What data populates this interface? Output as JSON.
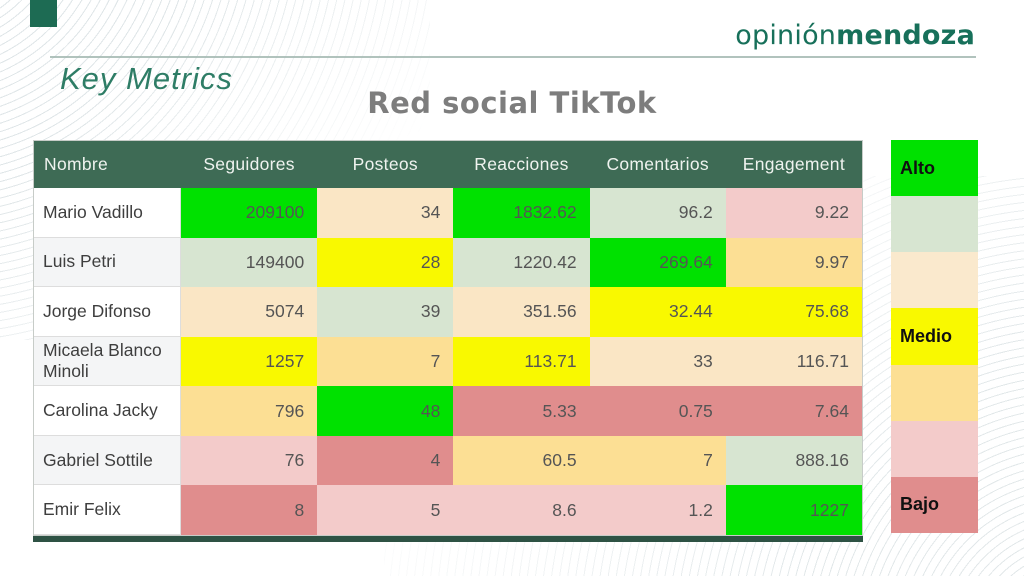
{
  "brand": {
    "logo_regular": "opinión",
    "logo_bold": "mendoza"
  },
  "page": {
    "section_title": "Key Metrics",
    "table_title": "Red social TikTok"
  },
  "colors": {
    "brand_green": "#1d6b53",
    "logo_green": "#17705a",
    "accent_green": "#2e7d66",
    "header_green": "#3e6b55",
    "title_gray": "#7d7d7d"
  },
  "legend": {
    "items": [
      {
        "label": "Alto",
        "color": "#00e100"
      },
      {
        "label": "",
        "color": "#d7e5d1"
      },
      {
        "label": "",
        "color": "#fae9cd"
      },
      {
        "label": "Medio",
        "color": "#f9f900"
      },
      {
        "label": "",
        "color": "#fcdf94"
      },
      {
        "label": "",
        "color": "#f3cbca"
      },
      {
        "label": "Bajo",
        "color": "#e08d8d"
      }
    ]
  },
  "chart_data": {
    "type": "table",
    "title": "Red social TikTok",
    "columns": [
      "Nombre",
      "Seguidores",
      "Posteos",
      "Reacciones",
      "Comentarios",
      "Engagement"
    ],
    "palette": {
      "green": "#00e100",
      "palegreen": "#d7e5d1",
      "cream": "#fae6c5",
      "yellow": "#f9f900",
      "gold": "#fcdf94",
      "pink": "#f3cbca",
      "salmon": "#e08d8d"
    },
    "rows": [
      {
        "name": "Mario Vadillo",
        "values": [
          "209100",
          "34",
          "1832.62",
          "96.2",
          "9.22"
        ],
        "colors": [
          "green",
          "cream",
          "green",
          "palegreen",
          "pink"
        ]
      },
      {
        "name": "Luis Petri",
        "values": [
          "149400",
          "28",
          "1220.42",
          "269.64",
          "9.97"
        ],
        "colors": [
          "palegreen",
          "yellow",
          "palegreen",
          "green",
          "gold"
        ]
      },
      {
        "name": "Jorge Difonso",
        "values": [
          "5074",
          "39",
          "351.56",
          "32.44",
          "75.68"
        ],
        "colors": [
          "cream",
          "palegreen",
          "cream",
          "yellow",
          "yellow"
        ]
      },
      {
        "name": "Micaela Blanco Minoli",
        "values": [
          "1257",
          "7",
          "113.71",
          "33",
          "116.71"
        ],
        "colors": [
          "yellow",
          "gold",
          "yellow",
          "cream",
          "cream"
        ]
      },
      {
        "name": "Carolina Jacky",
        "values": [
          "796",
          "48",
          "5.33",
          "0.75",
          "7.64"
        ],
        "colors": [
          "gold",
          "green",
          "salmon",
          "salmon",
          "salmon"
        ]
      },
      {
        "name": "Gabriel Sottile",
        "values": [
          "76",
          "4",
          "60.5",
          "7",
          "888.16"
        ],
        "colors": [
          "pink",
          "salmon",
          "gold",
          "gold",
          "palegreen"
        ]
      },
      {
        "name": "Emir Felix",
        "values": [
          "8",
          "5",
          "8.6",
          "1.2",
          "1227"
        ],
        "colors": [
          "salmon",
          "pink",
          "pink",
          "pink",
          "green"
        ]
      }
    ]
  }
}
